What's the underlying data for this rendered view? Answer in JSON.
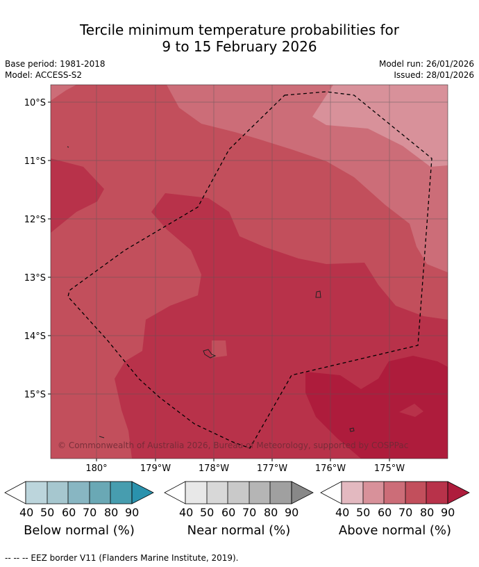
{
  "title_line1": "Tercile minimum temperature probabilities for",
  "title_line2": "9 to 15 February 2026",
  "base_period": "Base period: 1981-2018",
  "model": "Model: ACCESS-S2",
  "model_run": "Model run: 26/01/2026",
  "issued": "Issued: 28/01/2026",
  "map": {
    "lat_labels": [
      "10°S",
      "11°S",
      "12°S",
      "13°S",
      "14°S",
      "15°S"
    ],
    "lon_labels": [
      "180°",
      "179°W",
      "178°W",
      "177°W",
      "176°W",
      "175°W"
    ],
    "copyright": "© Commonwealth of Australia 2026, Bureau of Meteorology, supported by COSPPac",
    "colors": {
      "above_40": "#e3b9c0",
      "above_50": "#d8919a",
      "above_60": "#cc6d78",
      "above_70": "#c24f5c",
      "above_80": "#b8324a",
      "above_90": "#ae1c3c"
    }
  },
  "colorbars": [
    {
      "label": "Below normal (%)",
      "ticks": [
        "40",
        "50",
        "60",
        "70",
        "80",
        "90"
      ],
      "colors": [
        "#bcd5dc",
        "#a6c7cf",
        "#88b6c2",
        "#6aa8b5",
        "#479daf",
        "#2a92ad"
      ]
    },
    {
      "label": "Near normal (%)",
      "ticks": [
        "40",
        "50",
        "60",
        "70",
        "80",
        "90"
      ],
      "colors": [
        "#e8e8e8",
        "#d8d8d8",
        "#c9c9c9",
        "#b5b5b5",
        "#a0a0a0",
        "#888888"
      ]
    },
    {
      "label": "Above normal (%)",
      "ticks": [
        "40",
        "50",
        "60",
        "70",
        "80",
        "90"
      ],
      "colors": [
        "#e3b9c0",
        "#d8919a",
        "#cc6d78",
        "#c24f5c",
        "#b8324a",
        "#ae1c3c"
      ]
    }
  ],
  "footer": "--  --  -- EEZ border V11 (Flanders Marine Institute, 2019)."
}
